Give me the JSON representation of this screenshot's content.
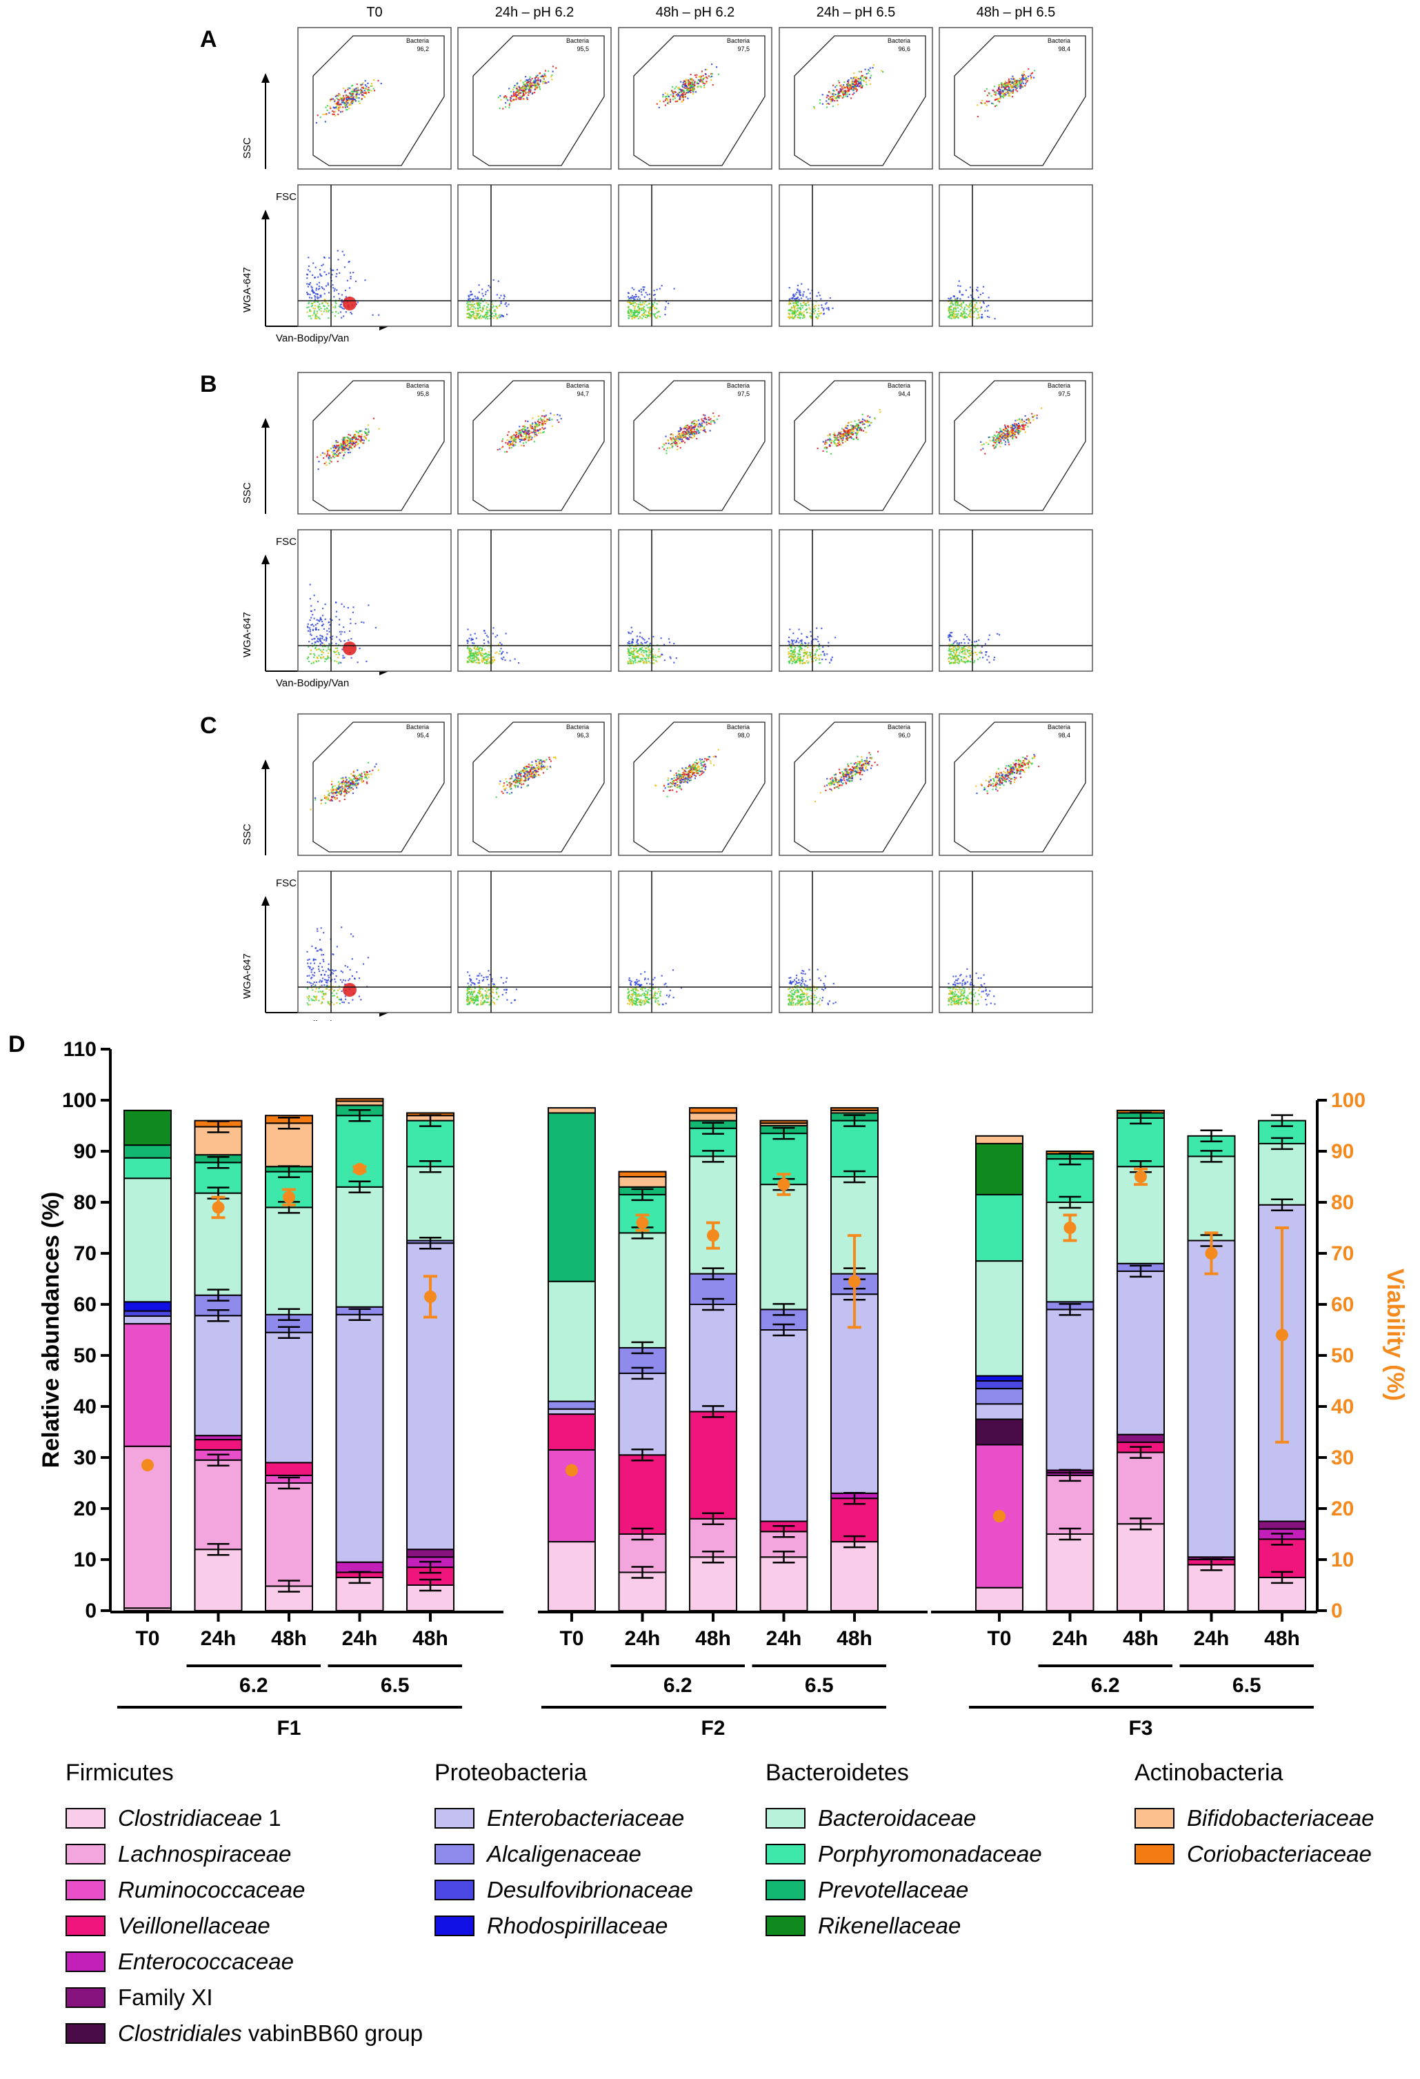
{
  "flow_panels": [
    {
      "letter": "A",
      "gate_values": [
        "96,2",
        "95,5",
        "97,5",
        "96,6",
        "98,4"
      ]
    },
    {
      "letter": "B",
      "gate_values": [
        "95,8",
        "94,7",
        "97,5",
        "94,4",
        "97,5"
      ]
    },
    {
      "letter": "C",
      "gate_values": [
        "95,4",
        "96,3",
        "98,0",
        "96,0",
        "98,4"
      ]
    }
  ],
  "flow_columns": [
    "T0",
    "24h – pH 6.2",
    "48h – pH 6.2",
    "24h – pH 6.5",
    "48h – pH 6.5"
  ],
  "flow_axes": {
    "ssc": "SSC",
    "fsc": "FSC",
    "wga": "WGA-647",
    "van": "Van-Bodipy/Van",
    "gate_name": "Bacteria"
  },
  "chart_data": {
    "type": "bar",
    "stacked": true,
    "panel_letter": "D",
    "ylabel": "Relative abundances (%)",
    "ylim": [
      0,
      110
    ],
    "yticks": [
      0,
      10,
      20,
      30,
      40,
      50,
      60,
      70,
      80,
      90,
      100,
      110
    ],
    "y2label": "Viability (%)",
    "y2lim": [
      0,
      100
    ],
    "y2ticks": [
      0,
      10,
      20,
      30,
      40,
      50,
      60,
      70,
      80,
      90,
      100
    ],
    "fermenters": [
      "F1",
      "F2",
      "F3"
    ],
    "time_labels": [
      "T0",
      "24h",
      "48h",
      "24h",
      "48h"
    ],
    "ph_labels": [
      "6.2",
      "6.5"
    ],
    "families": [
      {
        "name": "Clostridiaceae 1",
        "phylum": "Firmicutes",
        "color": "#F9CDE9",
        "italic_part": "Clostridiaceae",
        "plain_part": " 1"
      },
      {
        "name": "Lachnospiraceae",
        "phylum": "Firmicutes",
        "color": "#F3A6DD",
        "italic_part": "Lachnospiraceae",
        "plain_part": ""
      },
      {
        "name": "Ruminococcaceae",
        "phylum": "Firmicutes",
        "color": "#E84FC8",
        "italic_part": "Ruminococcaceae",
        "plain_part": ""
      },
      {
        "name": "Veillonellaceae",
        "phylum": "Firmicutes",
        "color": "#F0157C",
        "italic_part": "Veillonellaceae",
        "plain_part": ""
      },
      {
        "name": "Enterococcaceae",
        "phylum": "Firmicutes",
        "color": "#C31FB9",
        "italic_part": "Enterococcaceae",
        "plain_part": ""
      },
      {
        "name": "Family XI",
        "phylum": "Firmicutes",
        "color": "#86127E",
        "italic_part": "",
        "plain_part": "Family XI"
      },
      {
        "name": "Clostridiales vabinBB60 group",
        "phylum": "Firmicutes",
        "color": "#4A0B49",
        "italic_part": "Clostridiales",
        "plain_part": " vabinBB60 group"
      },
      {
        "name": "Enterobacteriaceae",
        "phylum": "Proteobacteria",
        "color": "#C3C0F2",
        "italic_part": "Enterobacteriaceae",
        "plain_part": ""
      },
      {
        "name": "Alcaligenaceae",
        "phylum": "Proteobacteria",
        "color": "#8E8BEC",
        "italic_part": "Alcaligenaceae",
        "plain_part": ""
      },
      {
        "name": "Desulfovibrionaceae",
        "phylum": "Proteobacteria",
        "color": "#4B47E2",
        "italic_part": "Desulfovibrionaceae",
        "plain_part": ""
      },
      {
        "name": "Rhodospirillaceae",
        "phylum": "Proteobacteria",
        "color": "#1010E5",
        "italic_part": "Rhodospirillaceae",
        "plain_part": ""
      },
      {
        "name": "Bacteroidaceae",
        "phylum": "Bacteroidetes",
        "color": "#B8F2DA",
        "italic_part": "Bacteroidaceae",
        "plain_part": ""
      },
      {
        "name": "Porphyromonadaceae",
        "phylum": "Bacteroidetes",
        "color": "#3EE8AA",
        "italic_part": "Porphyromonadaceae",
        "plain_part": ""
      },
      {
        "name": "Prevotellaceae",
        "phylum": "Bacteroidetes",
        "color": "#12B872",
        "italic_part": "Prevotellaceae",
        "plain_part": ""
      },
      {
        "name": "Rikenellaceae",
        "phylum": "Bacteroidetes",
        "color": "#108A1E",
        "italic_part": "Rikenellaceae",
        "plain_part": ""
      },
      {
        "name": "Bifidobacteriaceae",
        "phylum": "Actinobacteria",
        "color": "#FBC08E",
        "italic_part": "Bifidobacteriaceae",
        "plain_part": ""
      },
      {
        "name": "Coriobacteriaceae",
        "phylum": "Actinobacteria",
        "color": "#F47A12",
        "italic_part": "Coriobacteriaceae",
        "plain_part": ""
      }
    ],
    "phyla": [
      "Firmicutes",
      "Proteobacteria",
      "Bacteroidetes",
      "Actinobacteria"
    ],
    "bars": [
      {
        "fermenter": "F1",
        "time": "T0",
        "values": [
          0.5,
          31.7,
          24,
          0,
          0,
          0,
          0,
          1.5,
          0,
          1,
          1.8,
          24.2,
          4,
          2.5,
          6.8,
          0,
          0
        ],
        "viability": 28.5,
        "viability_err": 0
      },
      {
        "fermenter": "F1",
        "time": "24h",
        "values": [
          12,
          17.5,
          2,
          2,
          0.8,
          0,
          0,
          23.5,
          4,
          0,
          0,
          20,
          6,
          1.5,
          0,
          5.5,
          1.2
        ],
        "viability": 79,
        "viability_err": 2
      },
      {
        "fermenter": "F1",
        "time": "48h",
        "values": [
          4.8,
          20.2,
          1.5,
          2.5,
          0,
          0,
          0,
          25.5,
          3.5,
          0,
          0,
          21,
          7,
          1,
          0,
          8.5,
          1.5
        ],
        "viability": 81,
        "viability_err": 1.5
      },
      {
        "fermenter": "F1",
        "time": "24h",
        "values": [
          6.5,
          0,
          0,
          1,
          2,
          0,
          0,
          48.5,
          1.5,
          0,
          0,
          23.5,
          14,
          2,
          0,
          0.8,
          0.5
        ],
        "viability": 86.5,
        "viability_err": 0.5
      },
      {
        "fermenter": "F1",
        "time": "48h",
        "values": [
          5,
          0,
          0,
          3.5,
          2,
          1.5,
          0,
          60,
          0.5,
          0,
          0,
          14.5,
          9,
          0,
          0,
          1,
          0.5
        ],
        "viability": 61.5,
        "viability_err": 4
      },
      {
        "fermenter": "F2",
        "time": "T0",
        "values": [
          13.5,
          0,
          18,
          7,
          0,
          0,
          0,
          1,
          1.5,
          0,
          0,
          23.5,
          0,
          33,
          0,
          1,
          0
        ],
        "viability": 27.5,
        "viability_err": 0
      },
      {
        "fermenter": "F2",
        "time": "24h",
        "values": [
          7.5,
          7.5,
          0,
          15.5,
          0,
          0,
          0,
          16,
          5,
          0,
          0,
          22.5,
          7.5,
          1.5,
          0,
          2,
          1
        ],
        "viability": 76,
        "viability_err": 1.5
      },
      {
        "fermenter": "F2",
        "time": "48h",
        "values": [
          10.5,
          7.5,
          0,
          21,
          0,
          0,
          0,
          21,
          6,
          0,
          0,
          23,
          5.5,
          1.5,
          0,
          1.5,
          1
        ],
        "viability": 73.5,
        "viability_err": 2.5
      },
      {
        "fermenter": "F2",
        "time": "24h",
        "values": [
          10.5,
          5,
          0,
          2,
          0,
          0,
          0,
          37.5,
          4,
          0,
          0,
          24.5,
          10,
          1.5,
          0,
          0.5,
          0.5
        ],
        "viability": 83.5,
        "viability_err": 2
      },
      {
        "fermenter": "F2",
        "time": "48h",
        "values": [
          13.5,
          0,
          0,
          8.5,
          1,
          0,
          0,
          39,
          4,
          0,
          0,
          19,
          11,
          1.5,
          0,
          0.5,
          0.5
        ],
        "viability": 64.5,
        "viability_err": 9
      },
      {
        "fermenter": "F3",
        "time": "T0",
        "values": [
          4.5,
          0,
          28,
          0,
          0,
          0,
          5,
          3,
          3,
          1.5,
          1,
          22.5,
          13,
          0,
          10,
          1.5,
          0
        ],
        "viability": 18.5,
        "viability_err": 0
      },
      {
        "fermenter": "F3",
        "time": "24h",
        "values": [
          15,
          11.5,
          0,
          0,
          0.5,
          0.5,
          0,
          31.5,
          1.5,
          0,
          0,
          19.5,
          8.5,
          1,
          0,
          0,
          0.5
        ],
        "viability": 75,
        "viability_err": 2.5
      },
      {
        "fermenter": "F3",
        "time": "48h",
        "values": [
          17,
          14,
          0,
          2,
          0,
          1.5,
          0,
          32,
          1.5,
          0,
          0,
          19,
          9.5,
          1,
          0,
          0,
          0.5
        ],
        "viability": 85,
        "viability_err": 1.5
      },
      {
        "fermenter": "F3",
        "time": "24h",
        "values": [
          9,
          0,
          0,
          1,
          0,
          0.5,
          0,
          62,
          0,
          0,
          0,
          16.5,
          4,
          0,
          0,
          0,
          0
        ],
        "viability": 70,
        "viability_err": 4
      },
      {
        "fermenter": "F3",
        "time": "48h",
        "values": [
          6.5,
          0,
          0,
          7.5,
          2,
          1.5,
          0,
          62,
          0,
          0,
          0,
          12,
          4.5,
          0,
          0,
          0,
          0
        ],
        "viability": 54,
        "viability_err": 21
      }
    ]
  }
}
